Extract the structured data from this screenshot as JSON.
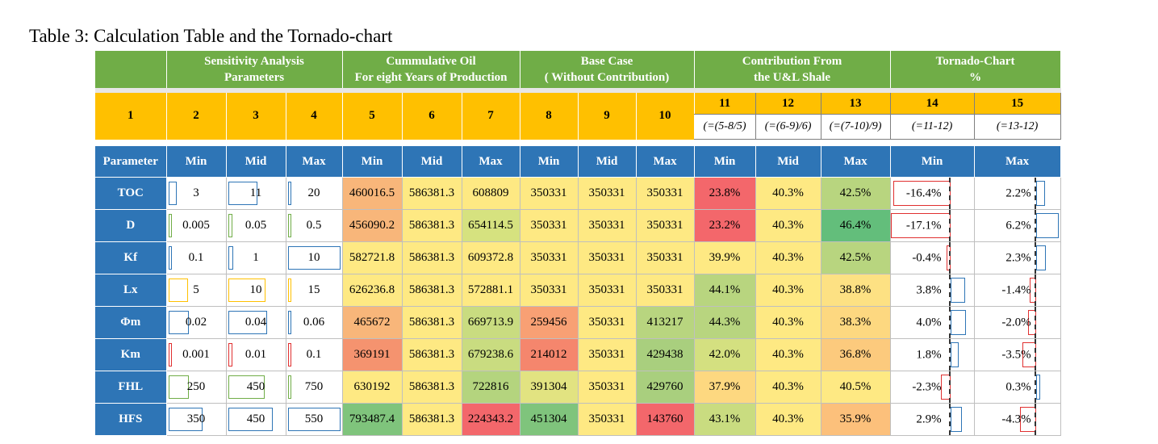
{
  "caption": "Table 3: Calculation Table and the Tornado-chart",
  "groups": [
    {
      "line1": "",
      "line2": ""
    },
    {
      "line1": "Sensitivity Analysis",
      "line2": "Parameters"
    },
    {
      "line1": "Cummulative Oil",
      "line2": "For eight Years of Production"
    },
    {
      "line1": "Base Case",
      "line2": "( Without Contribution)"
    },
    {
      "line1": "Contribution From",
      "line2": "the U&L Shale"
    },
    {
      "line1": "Tornado-Chart",
      "line2": "%"
    }
  ],
  "numbers": [
    "1",
    "2",
    "3",
    "4",
    "5",
    "6",
    "7",
    "8",
    "9",
    "10",
    "11",
    "12",
    "13",
    "14",
    "15"
  ],
  "formulas": [
    "(=(5-8/5)",
    "(=(6-9)/6)",
    "(=(7-10)/9)",
    "(=11-12)",
    "(=13-12)"
  ],
  "columns": [
    "Parameter",
    "Min",
    "Mid",
    "Max",
    "Min",
    "Mid",
    "Max",
    "Min",
    "Mid",
    "Max",
    "Min",
    "Mid",
    "Max",
    "Min",
    "Max"
  ],
  "rows": [
    {
      "name": "TOC",
      "cells": [
        "3",
        "11",
        "20",
        "460016.5",
        "586381.3",
        "608809",
        "350331",
        "350331",
        "350331",
        "23.8%",
        "40.3%",
        "42.5%",
        "-16.4%",
        "2.2%"
      ]
    },
    {
      "name": "D",
      "cells": [
        "0.005",
        "0.05",
        "0.5",
        "456090.2",
        "586381.3",
        "654114.5",
        "350331",
        "350331",
        "350331",
        "23.2%",
        "40.3%",
        "46.4%",
        "-17.1%",
        "6.2%"
      ]
    },
    {
      "name": "Kf",
      "cells": [
        "0.1",
        "1",
        "10",
        "582721.8",
        "586381.3",
        "609372.8",
        "350331",
        "350331",
        "350331",
        "39.9%",
        "40.3%",
        "42.5%",
        "-0.4%",
        "2.3%"
      ]
    },
    {
      "name": "Lx",
      "cells": [
        "5",
        "10",
        "15",
        "626236.8",
        "586381.3",
        "572881.1",
        "350331",
        "350331",
        "350331",
        "44.1%",
        "40.3%",
        "38.8%",
        "3.8%",
        "-1.4%"
      ]
    },
    {
      "name": "Φm",
      "cells": [
        "0.02",
        "0.04",
        "0.06",
        "465672",
        "586381.3",
        "669713.9",
        "259456",
        "350331",
        "413217",
        "44.3%",
        "40.3%",
        "38.3%",
        "4.0%",
        "-2.0%"
      ]
    },
    {
      "name": "Km",
      "cells": [
        "0.001",
        "0.01",
        "0.1",
        "369191",
        "586381.3",
        "679238.6",
        "214012",
        "350331",
        "429438",
        "42.0%",
        "40.3%",
        "36.8%",
        "1.8%",
        "-3.5%"
      ]
    },
    {
      "name": "FHL",
      "cells": [
        "250",
        "450",
        "750",
        "630192",
        "586381.3",
        "722816",
        "391304",
        "350331",
        "429760",
        "37.9%",
        "40.3%",
        "40.5%",
        "-2.3%",
        "0.3%"
      ]
    },
    {
      "name": "HFS",
      "cells": [
        "350",
        "450",
        "550",
        "793487.4",
        "586381.3",
        "224343.2",
        "451304",
        "350331",
        "143760",
        "43.1%",
        "40.3%",
        "35.9%",
        "2.9%",
        "-4.3%"
      ]
    }
  ],
  "colors": {
    "header_green": "#70ad47",
    "number_orange": "#ffc000",
    "param_blue": "#2e75b6",
    "heat": {
      "460016.5": "#f8b67a",
      "586381.3": "#fee983",
      "608809": "#fee983",
      "456090.2": "#f8b67a",
      "654114.5": "#d6e27f",
      "582721.8": "#fee983",
      "609372.8": "#fee983",
      "626236.8": "#fee983",
      "572881.1": "#fee983",
      "465672": "#f8b67a",
      "669713.9": "#c9dc80",
      "369191": "#f5936f",
      "679238.6": "#c9dc80",
      "630192": "#fee983",
      "722816": "#b4d47e",
      "793487.4": "#7fc47c",
      "224343.2": "#f3676b",
      "350331": "#fee983",
      "259456": "#f8a074",
      "413217": "#b8d57f",
      "214012": "#f5866d",
      "429438": "#a9cf7e",
      "391304": "#e2e381",
      "429760": "#a9cf7e",
      "451304": "#7fc47c",
      "143760": "#f3676b",
      "23.8%": "#f3676b",
      "40.3%": "#fee983",
      "42.5%": "#b8d57f",
      "23.2%": "#f3676b",
      "46.4%": "#63be7b",
      "39.9%": "#fee983",
      "44.1%": "#b8d57f",
      "38.8%": "#fde183",
      "44.3%": "#b8d57f",
      "38.3%": "#fdd880",
      "42.0%": "#d4e080",
      "36.8%": "#fcca7d",
      "37.9%": "#fdd880",
      "40.5%": "#fee983",
      "43.1%": "#c9dc80",
      "35.9%": "#fcc07b"
    }
  }
}
